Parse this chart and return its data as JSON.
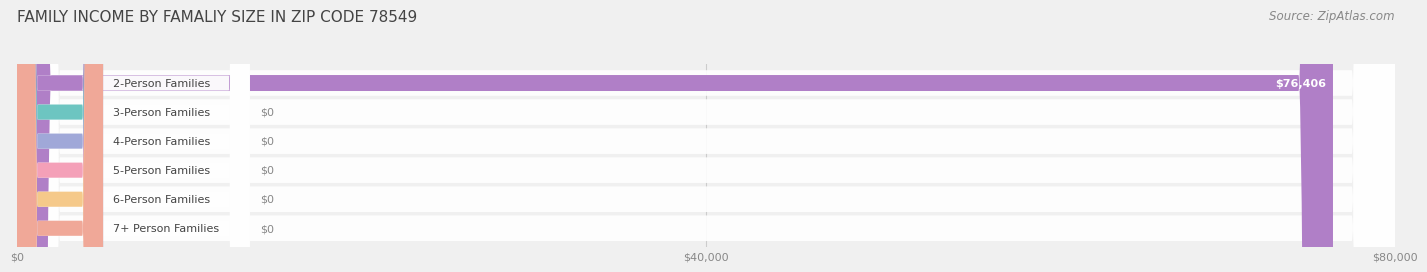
{
  "title": "FAMILY INCOME BY FAMALIY SIZE IN ZIP CODE 78549",
  "source": "Source: ZipAtlas.com",
  "categories": [
    "2-Person Families",
    "3-Person Families",
    "4-Person Families",
    "5-Person Families",
    "6-Person Families",
    "7+ Person Families"
  ],
  "values": [
    76406,
    0,
    0,
    0,
    0,
    0
  ],
  "bar_colors": [
    "#b07fc7",
    "#6dc5c1",
    "#a0a8d8",
    "#f4a0b8",
    "#f5c98a",
    "#f0a898"
  ],
  "value_labels": [
    "$76,406",
    "$0",
    "$0",
    "$0",
    "$0",
    "$0"
  ],
  "xlim": [
    0,
    80000
  ],
  "xticks": [
    0,
    40000,
    80000
  ],
  "xticklabels": [
    "$0",
    "$40,000",
    "$80,000"
  ],
  "background_color": "#f0f0f0",
  "bar_height": 0.55,
  "title_fontsize": 11,
  "source_fontsize": 8.5,
  "label_fontsize": 8,
  "value_fontsize": 8
}
